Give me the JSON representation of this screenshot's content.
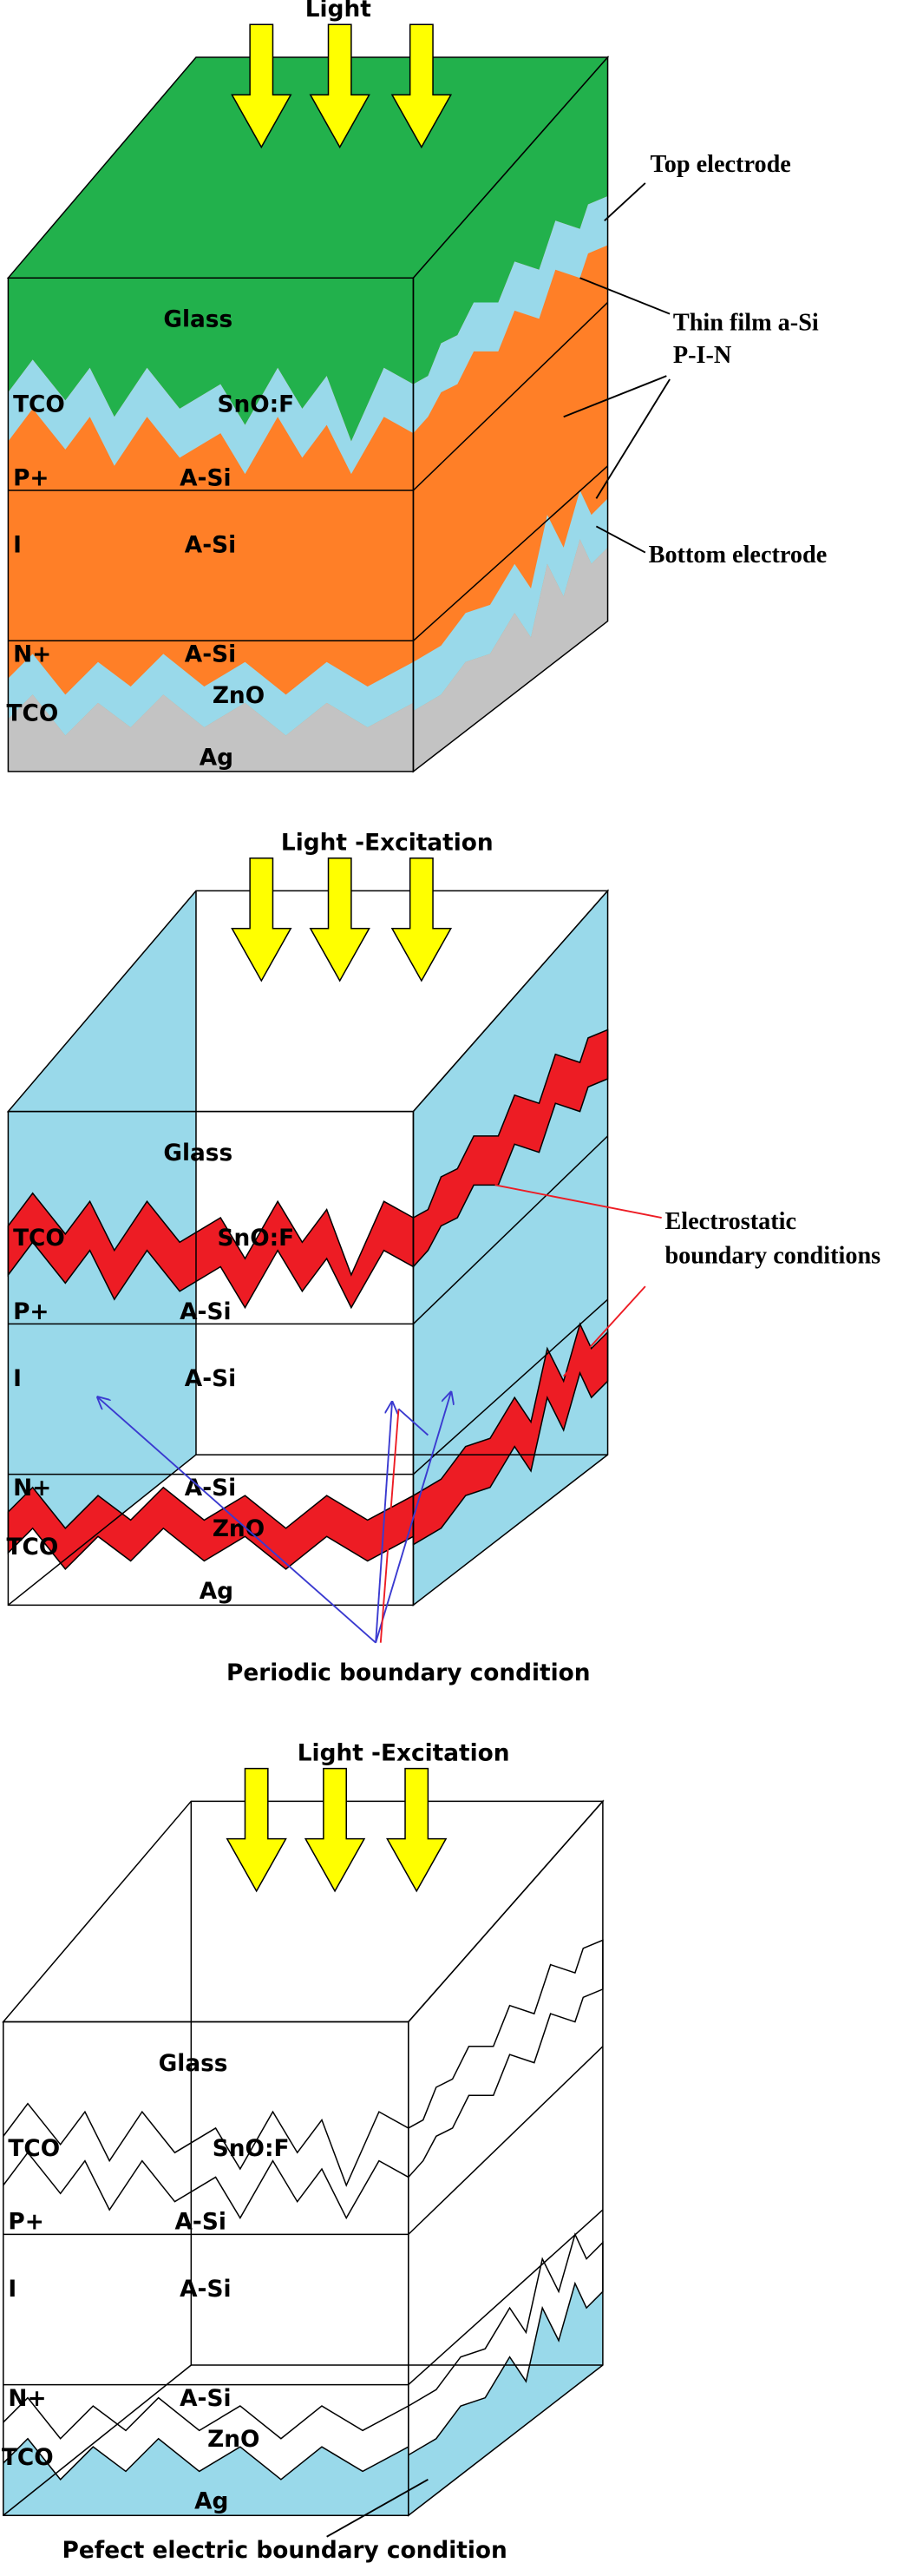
{
  "panels": [
    {
      "title": "Light",
      "layers": [
        "Glass",
        "TCO",
        "SnO:F",
        "P+",
        "A-Si",
        "I",
        "A-Si",
        "N+",
        "A-Si",
        "TCO",
        "ZnO",
        "Ag"
      ],
      "callouts": [
        "Top electrode",
        "Thin film a-Si",
        "P-I-N",
        "Bottom electrode"
      ]
    },
    {
      "title": "Light -Excitation",
      "layers": [
        "Glass",
        "TCO",
        "SnO:F",
        "P+",
        "A-Si",
        "I",
        "A-Si",
        "N+",
        "A-Si",
        "TCO",
        "ZnO",
        "Ag"
      ],
      "callouts": [
        "Electrostatic",
        "boundary conditions",
        "Periodic boundary condition"
      ]
    },
    {
      "title": "Light -Excitation",
      "layers": [
        "Glass",
        "TCO",
        "SnO:F",
        "P+",
        "A-Si",
        "I",
        "A-Si",
        "N+",
        "A-Si",
        "TCO",
        "ZnO",
        "Ag"
      ],
      "callouts": [
        "Pefect electric boundary condition"
      ]
    }
  ]
}
